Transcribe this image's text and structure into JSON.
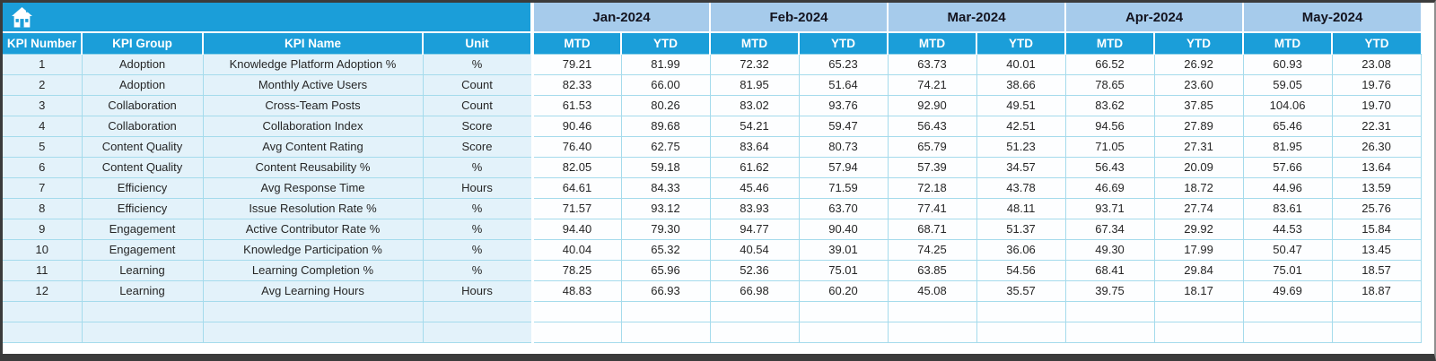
{
  "colors": {
    "header_cyan": "#1b9ed9",
    "month_band_blue": "#a6cbeb",
    "row_tint_blue": "#e3f2fa",
    "grid_cyan": "#a5dbec",
    "frame_dark": "#3b3b3b"
  },
  "icons": {
    "home": "home-icon"
  },
  "columns": [
    "KPI Number",
    "KPI Group",
    "KPI Name",
    "Unit"
  ],
  "months": [
    "Jan-2024",
    "Feb-2024",
    "Mar-2024",
    "Apr-2024",
    "May-2024"
  ],
  "sub_headers": [
    "MTD",
    "YTD"
  ],
  "rows": [
    {
      "number": "1",
      "group": "Adoption",
      "name": "Knowledge Platform Adoption %",
      "unit": "%",
      "values": [
        "79.21",
        "81.99",
        "72.32",
        "65.23",
        "63.73",
        "40.01",
        "66.52",
        "26.92",
        "60.93",
        "23.08"
      ]
    },
    {
      "number": "2",
      "group": "Adoption",
      "name": "Monthly Active Users",
      "unit": "Count",
      "values": [
        "82.33",
        "66.00",
        "81.95",
        "51.64",
        "74.21",
        "38.66",
        "78.65",
        "23.60",
        "59.05",
        "19.76"
      ]
    },
    {
      "number": "3",
      "group": "Collaboration",
      "name": "Cross-Team Posts",
      "unit": "Count",
      "values": [
        "61.53",
        "80.26",
        "83.02",
        "93.76",
        "92.90",
        "49.51",
        "83.62",
        "37.85",
        "104.06",
        "19.70"
      ]
    },
    {
      "number": "4",
      "group": "Collaboration",
      "name": "Collaboration Index",
      "unit": "Score",
      "values": [
        "90.46",
        "89.68",
        "54.21",
        "59.47",
        "56.43",
        "42.51",
        "94.56",
        "27.89",
        "65.46",
        "22.31"
      ]
    },
    {
      "number": "5",
      "group": "Content Quality",
      "name": "Avg Content Rating",
      "unit": "Score",
      "values": [
        "76.40",
        "62.75",
        "83.64",
        "80.73",
        "65.79",
        "51.23",
        "71.05",
        "27.31",
        "81.95",
        "26.30"
      ]
    },
    {
      "number": "6",
      "group": "Content Quality",
      "name": "Content Reusability %",
      "unit": "%",
      "values": [
        "82.05",
        "59.18",
        "61.62",
        "57.94",
        "57.39",
        "34.57",
        "56.43",
        "20.09",
        "57.66",
        "13.64"
      ]
    },
    {
      "number": "7",
      "group": "Efficiency",
      "name": "Avg Response Time",
      "unit": "Hours",
      "values": [
        "64.61",
        "84.33",
        "45.46",
        "71.59",
        "72.18",
        "43.78",
        "46.69",
        "18.72",
        "44.96",
        "13.59"
      ]
    },
    {
      "number": "8",
      "group": "Efficiency",
      "name": "Issue Resolution Rate %",
      "unit": "%",
      "values": [
        "71.57",
        "93.12",
        "83.93",
        "63.70",
        "77.41",
        "48.11",
        "93.71",
        "27.74",
        "83.61",
        "25.76"
      ]
    },
    {
      "number": "9",
      "group": "Engagement",
      "name": "Active Contributor Rate %",
      "unit": "%",
      "values": [
        "94.40",
        "79.30",
        "94.77",
        "90.40",
        "68.71",
        "51.37",
        "67.34",
        "29.92",
        "44.53",
        "15.84"
      ]
    },
    {
      "number": "10",
      "group": "Engagement",
      "name": "Knowledge Participation %",
      "unit": "%",
      "values": [
        "40.04",
        "65.32",
        "40.54",
        "39.01",
        "74.25",
        "36.06",
        "49.30",
        "17.99",
        "50.47",
        "13.45"
      ]
    },
    {
      "number": "11",
      "group": "Learning",
      "name": "Learning Completion %",
      "unit": "%",
      "values": [
        "78.25",
        "65.96",
        "52.36",
        "75.01",
        "63.85",
        "54.56",
        "68.41",
        "29.84",
        "75.01",
        "18.57"
      ]
    },
    {
      "number": "12",
      "group": "Learning",
      "name": "Avg Learning Hours",
      "unit": "Hours",
      "values": [
        "48.83",
        "66.93",
        "66.98",
        "60.20",
        "45.08",
        "35.57",
        "39.75",
        "18.17",
        "49.69",
        "18.87"
      ]
    }
  ],
  "trailing_empty_rows": 2
}
